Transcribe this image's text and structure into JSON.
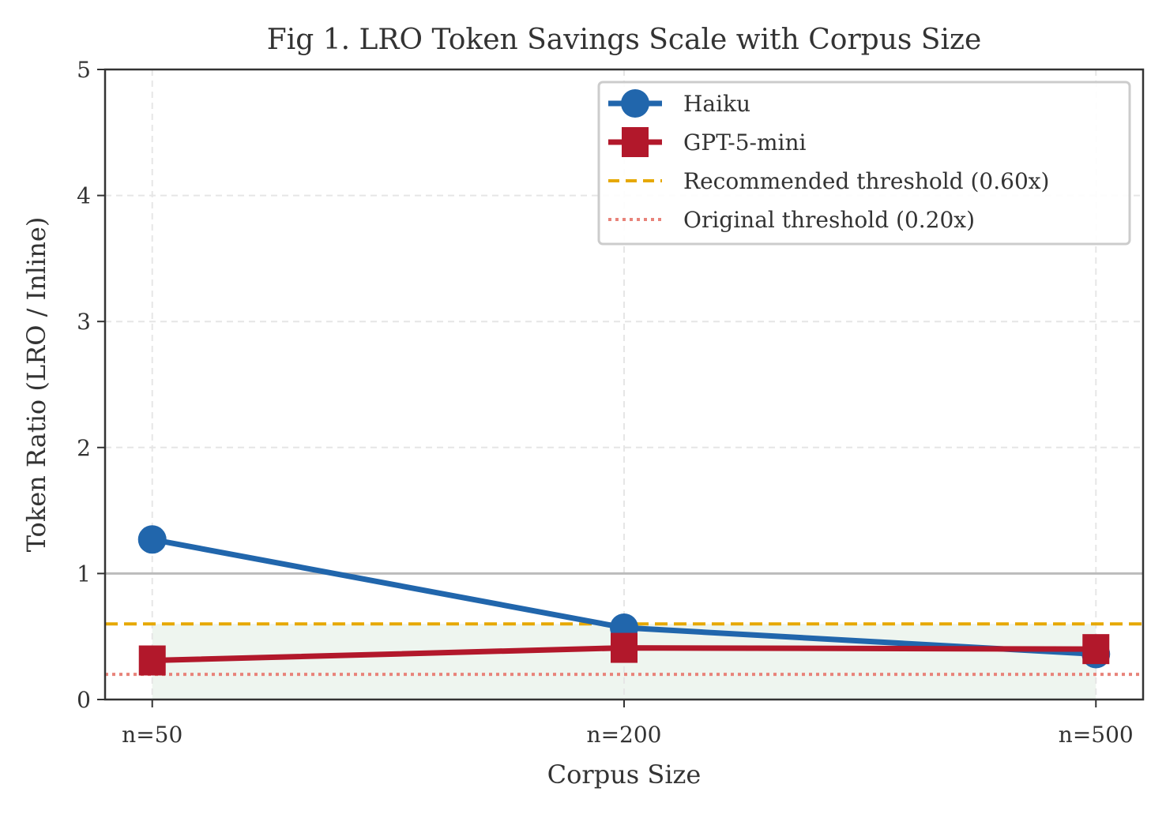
{
  "chart_data": {
    "type": "line",
    "title": "Fig 1. LRO Token Savings Scale with Corpus Size",
    "xlabel": "Corpus Size",
    "ylabel": "Token Ratio (LRO / Inline)",
    "categories": [
      "n=50",
      "n=200",
      "n=500"
    ],
    "ylim": [
      0,
      5
    ],
    "yticks": [
      0,
      1,
      2,
      3,
      4,
      5
    ],
    "grid": true,
    "legend_position": "top-right",
    "series": [
      {
        "name": "Haiku",
        "values": [
          1.27,
          0.57,
          0.36
        ],
        "color": "#2166ac",
        "marker": "circle"
      },
      {
        "name": "GPT-5-mini",
        "values": [
          0.31,
          0.41,
          0.4
        ],
        "color": "#b2182b",
        "marker": "square"
      }
    ],
    "reference_lines": [
      {
        "name": "Recommended threshold (0.60x)",
        "y": 0.6,
        "color": "#e6a800",
        "style": "dashed"
      },
      {
        "name": "Original threshold (0.20x)",
        "y": 0.2,
        "color": "#e8837a",
        "style": "dotted"
      },
      {
        "y": 1.0,
        "color": "#bbbbbb",
        "style": "solid"
      }
    ],
    "shaded_region": {
      "y": [
        0,
        0.6
      ],
      "color": "#eef5ef"
    }
  }
}
